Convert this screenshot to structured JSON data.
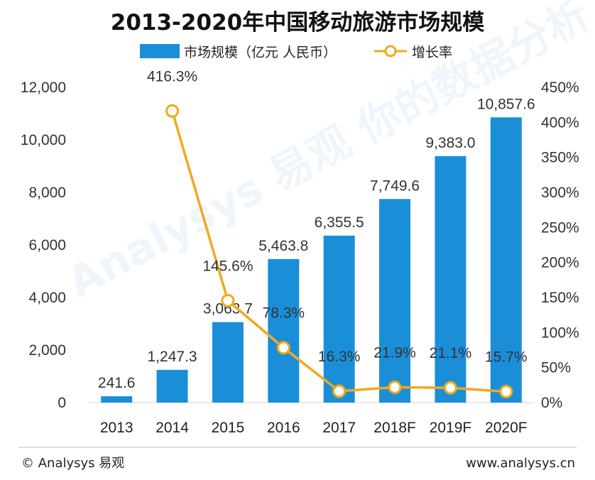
{
  "chart_data": {
    "type": "bar",
    "title": "2013-2020年中国移动旅游市场规模",
    "categories": [
      "2013",
      "2014",
      "2015",
      "2016",
      "2017",
      "2018F",
      "2019F",
      "2020F"
    ],
    "series": [
      {
        "name": "市场规模（亿元 人民币）",
        "type": "bar",
        "axis": "left",
        "color": "#1a8fd8",
        "values": [
          241.6,
          1247.3,
          3063.7,
          5463.8,
          6355.5,
          7749.6,
          9383.0,
          10857.6
        ],
        "labels": [
          "241.6",
          "1,247.3",
          "3,063.7",
          "5,463.8",
          "6,355.5",
          "7,749.6",
          "9,383.0",
          "10,857.6"
        ]
      },
      {
        "name": "增长率",
        "type": "line",
        "axis": "right",
        "color": "#f2a81d",
        "values": [
          null,
          416.3,
          145.6,
          78.3,
          16.3,
          21.9,
          21.1,
          15.7
        ],
        "labels": [
          null,
          "416.3%",
          "145.6%",
          "78.3%",
          "16.3%",
          "21.9%",
          "21.1%",
          "15.7%"
        ]
      }
    ],
    "y_left": {
      "min": 0,
      "max": 12000,
      "ticks": [
        "0",
        "2,000",
        "4,000",
        "6,000",
        "8,000",
        "10,000",
        "12,000"
      ]
    },
    "y_right": {
      "min": 0,
      "max": 450,
      "ticks": [
        "0%",
        "50%",
        "100%",
        "150%",
        "200%",
        "250%",
        "300%",
        "350%",
        "400%",
        "450%"
      ]
    },
    "legend_position": "top-center"
  },
  "legend": {
    "bar_label": "市场规模（亿元 人民币）",
    "line_label": "增长率"
  },
  "footer": {
    "left": "© Analysys 易观",
    "right": "www.analysys.cn"
  },
  "watermark": {
    "text": "Analysys 易观 你的数据分析"
  },
  "colors": {
    "bar": "#1a8fd8",
    "line": "#f2a81d",
    "marker_fill": "#ffffff"
  }
}
